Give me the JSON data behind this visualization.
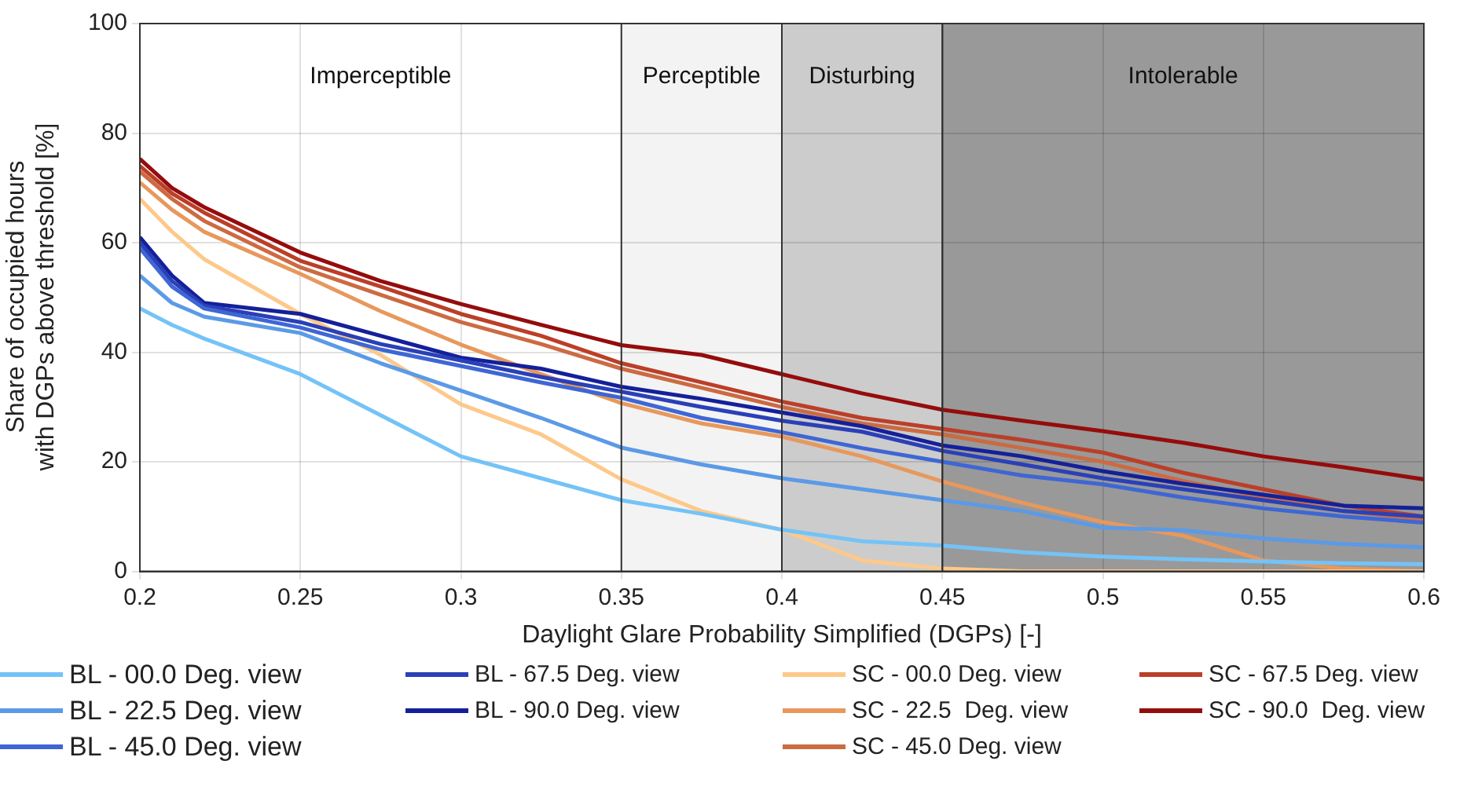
{
  "chart_data": {
    "type": "line",
    "xlabel": "Daylight Glare Probability Simplified (DGPs) [-]",
    "ylabel": "Share of occupied hours\nwith DGPs above threshold [%]",
    "x": [
      0.2,
      0.21,
      0.22,
      0.25,
      0.275,
      0.3,
      0.325,
      0.35,
      0.375,
      0.4,
      0.425,
      0.45,
      0.475,
      0.5,
      0.525,
      0.55,
      0.575,
      0.6
    ],
    "xlim": [
      0.2,
      0.6
    ],
    "xticks": [
      0.2,
      0.25,
      0.3,
      0.35,
      0.4,
      0.45,
      0.5,
      0.55,
      0.6
    ],
    "ylim": [
      0,
      100
    ],
    "yticks": [
      0,
      20,
      40,
      60,
      80,
      100
    ],
    "grid": true,
    "legend": "bottom",
    "marker": "none",
    "line_style": "solid",
    "annotations": [
      "Imperceptible"
    ],
    "bands": [
      {
        "axis": "x",
        "from": 0.35,
        "to": 0.4,
        "label": "Perceptible",
        "color": "#f3f3f3"
      },
      {
        "axis": "x",
        "from": 0.4,
        "to": 0.45,
        "label": "Disturbing",
        "color": "#cccccc"
      },
      {
        "axis": "x",
        "from": 0.45,
        "to": 0.6,
        "label": "Intolerable",
        "color": "#999999"
      }
    ],
    "series": [
      {
        "name": "BL - 00.0 Deg. view",
        "color": "#74c3f7",
        "values": [
          48,
          45,
          42.5,
          36,
          28.5,
          21,
          17,
          13,
          10.5,
          7.6,
          5.5,
          4.7,
          3.5,
          2.7,
          2.2,
          1.8,
          1.5,
          1.3
        ]
      },
      {
        "name": "BL - 22.5 Deg. view",
        "color": "#5b9ae6",
        "values": [
          54,
          49,
          46.5,
          43.5,
          38,
          33,
          28,
          22.6,
          19.5,
          17,
          15,
          13,
          11,
          8,
          7.5,
          6,
          5,
          4.4
        ]
      },
      {
        "name": "BL - 45.0 Deg. view",
        "color": "#3e66d4",
        "values": [
          59,
          52,
          48,
          44.5,
          40.5,
          37.5,
          34.5,
          31.7,
          28,
          25.4,
          22.5,
          20,
          17.5,
          15.9,
          13.5,
          11.5,
          10,
          8.9
        ]
      },
      {
        "name": "BL - 67.5 Deg. view",
        "color": "#2a40b8",
        "values": [
          60,
          53,
          48.5,
          45.5,
          41.5,
          38.5,
          35.5,
          32.8,
          30,
          27.5,
          25.5,
          22,
          19.5,
          17,
          15,
          13,
          11,
          10
        ]
      },
      {
        "name": "BL - 90.0 Deg. view",
        "color": "#14209a",
        "values": [
          61,
          54,
          49,
          47,
          43,
          39,
          37,
          33.7,
          31.5,
          29,
          26.5,
          23,
          21,
          18.3,
          16,
          14,
          12,
          11.5
        ]
      },
      {
        "name": "SC - 00.0 Deg. view",
        "color": "#fdc98a",
        "values": [
          68,
          62,
          57,
          47,
          39.5,
          30.5,
          25,
          16.8,
          11,
          7.6,
          2,
          0.5,
          0,
          0,
          0,
          0,
          0,
          0
        ]
      },
      {
        "name": "SC - 22.5  Deg. view",
        "color": "#e8985c",
        "values": [
          71,
          66,
          62,
          54.3,
          47.5,
          41.4,
          36,
          30.7,
          27,
          24.6,
          21,
          16.4,
          12.5,
          9,
          6.5,
          2,
          0.5,
          0
        ]
      },
      {
        "name": "SC - 45.0 Deg. view",
        "color": "#cc6a42",
        "values": [
          73,
          68,
          64,
          55.5,
          50.5,
          45.5,
          41.5,
          37,
          33.5,
          30,
          27,
          25,
          22.5,
          20,
          16.5,
          13.5,
          11,
          9.5
        ]
      },
      {
        "name": "SC - 67.5 Deg. view",
        "color": "#bb3f28",
        "values": [
          74,
          69,
          65.5,
          56.7,
          52,
          47,
          43,
          38,
          34.5,
          31,
          28,
          26,
          24,
          21.7,
          18,
          15,
          12,
          10
        ]
      },
      {
        "name": "SC - 90.0  Deg. view",
        "color": "#950c0c",
        "values": [
          75.3,
          70,
          66.5,
          58.2,
          53,
          48.8,
          45,
          41.3,
          39.5,
          36,
          32.5,
          29.5,
          27.5,
          25.6,
          23.5,
          21,
          19,
          16.8
        ]
      }
    ]
  }
}
